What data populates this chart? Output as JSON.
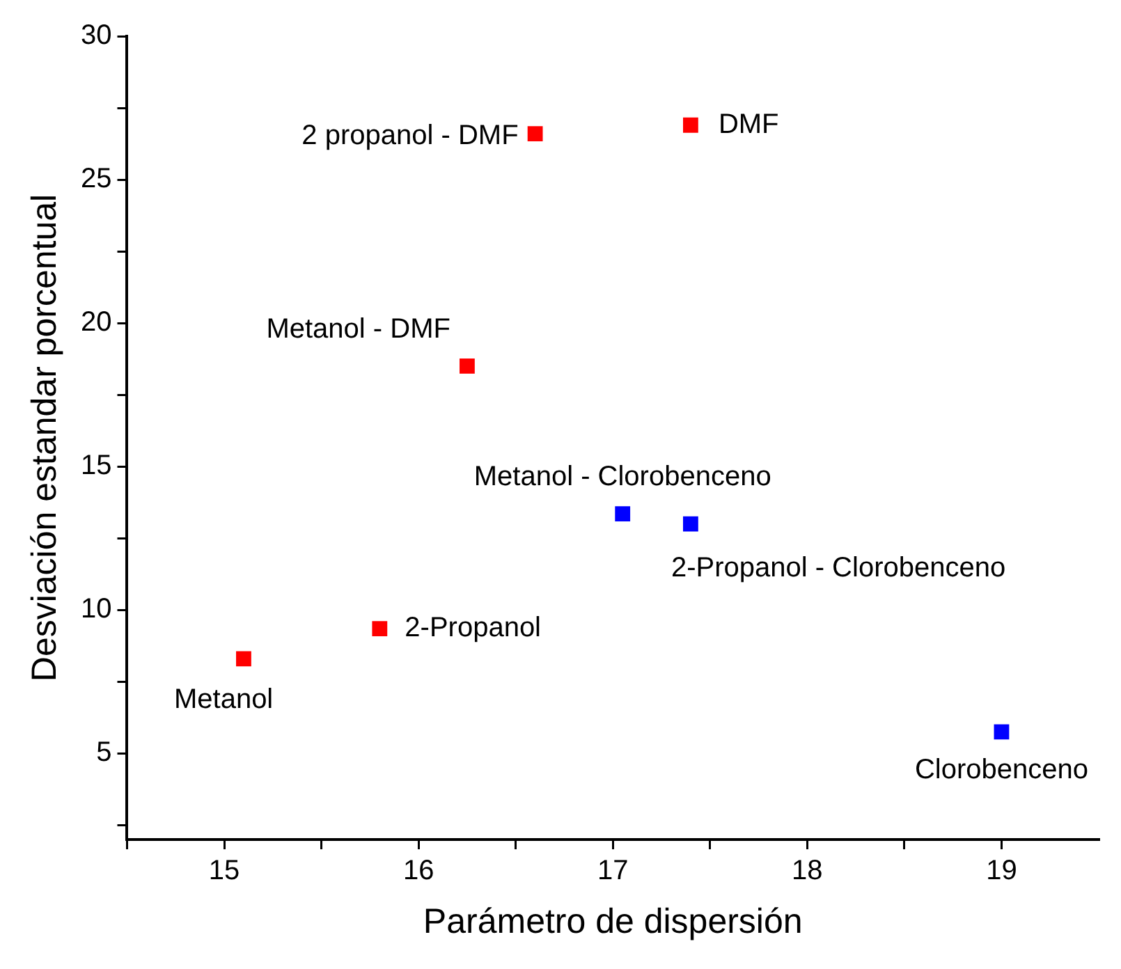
{
  "chart_data": {
    "type": "scatter",
    "xlabel": "Parámetro de dispersión",
    "ylabel": "Desviación estandar porcentual",
    "series": [
      {
        "color": "#ff0000",
        "x": [
          15.1,
          15.8,
          16.25,
          16.6,
          17.4
        ],
        "values": [
          8.3,
          9.35,
          18.5,
          26.6,
          26.9
        ]
      },
      {
        "color": "#0000ff",
        "x": [
          17.05,
          17.4,
          19.0
        ],
        "values": [
          13.35,
          13.0,
          5.75
        ]
      }
    ],
    "xlim": [
      14.5,
      19.5
    ],
    "ylim": [
      2,
      30
    ],
    "xticks": [
      {
        "value": 14.5,
        "label": null
      },
      15,
      {
        "value": 15.5,
        "label": null
      },
      16,
      {
        "value": 16.5,
        "label": null
      },
      17,
      {
        "value": 17.5,
        "label": null
      },
      18,
      {
        "value": 18.5,
        "label": null
      },
      19
    ],
    "yticks": [
      {
        "value": 2.5,
        "label": null
      },
      5,
      {
        "value": 7.5,
        "label": null
      },
      10,
      {
        "value": 12.5,
        "label": null
      },
      15,
      {
        "value": 17.5,
        "label": null
      },
      20,
      {
        "value": 22.5,
        "label": null
      },
      25,
      {
        "value": 27.5,
        "label": null
      },
      30
    ],
    "marker": "square",
    "grid": false,
    "legend": false,
    "annotations": [
      {
        "text": "Metanol",
        "x": 15.1,
        "y": 8.3
      },
      {
        "text": "2-Propanol",
        "x": 15.8,
        "y": 9.35
      },
      {
        "text": "Metanol - DMF",
        "x": 16.25,
        "y": 18.5
      },
      {
        "text": "2 propanol - DMF",
        "x": 16.6,
        "y": 26.6
      },
      {
        "text": "DMF",
        "x": 17.4,
        "y": 26.9
      },
      {
        "text": "Metanol - Clorobenceno",
        "x": 17.05,
        "y": 13.35
      },
      {
        "text": "2-Propanol - Clorobenceno",
        "x": 17.4,
        "y": 13.0
      },
      {
        "text": "Clorobenceno",
        "x": 19.0,
        "y": 5.75
      }
    ]
  }
}
